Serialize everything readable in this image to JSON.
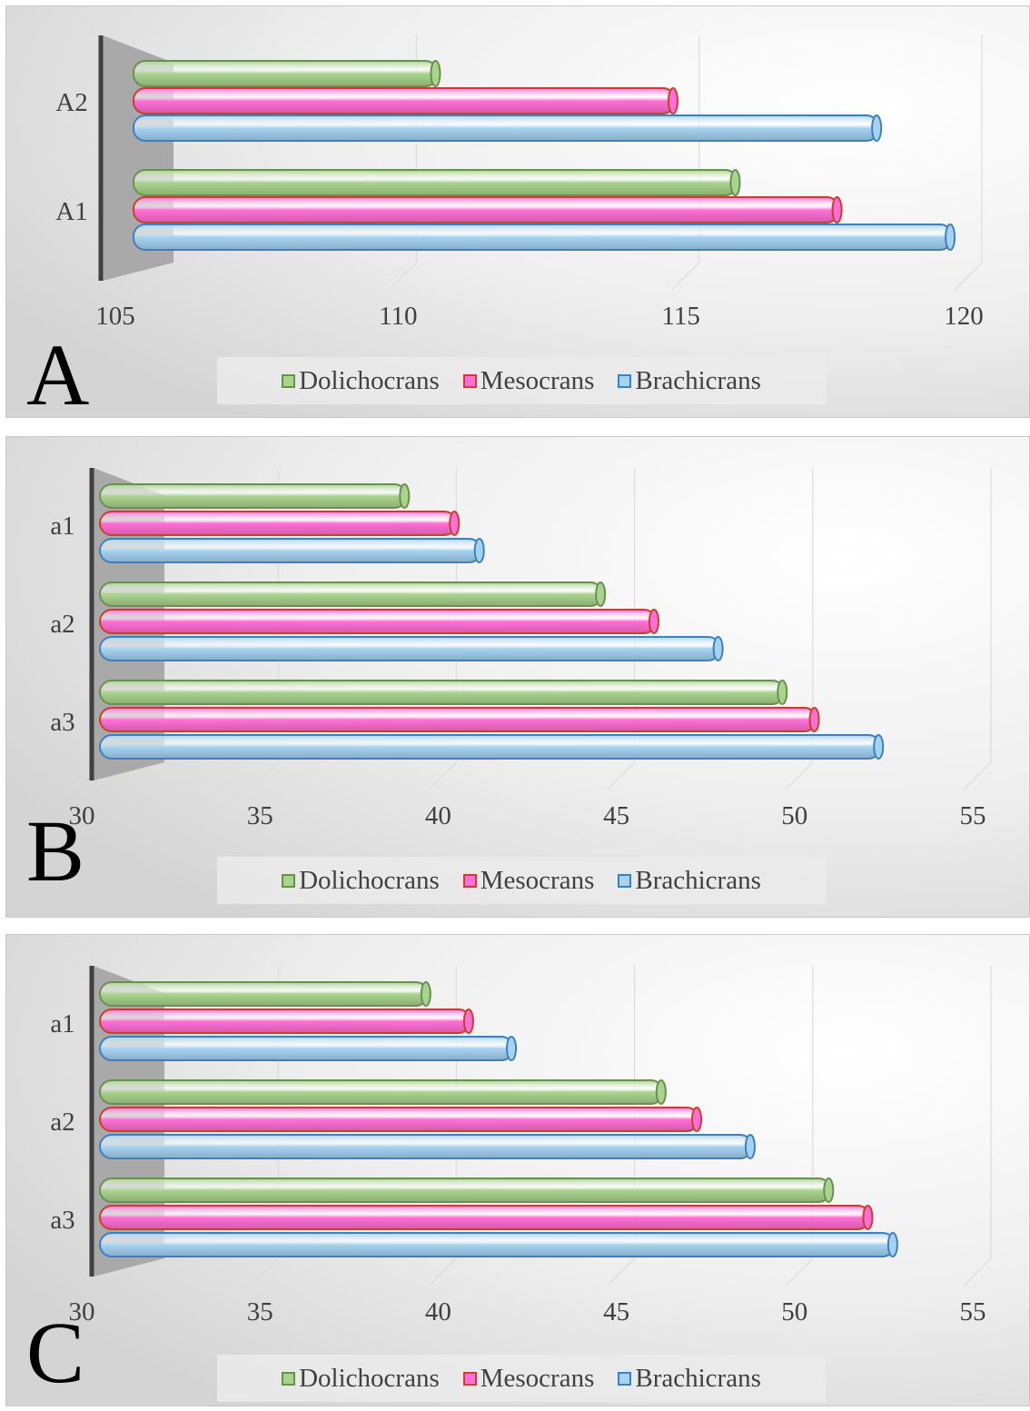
{
  "series_styles": {
    "Dolichocrans": {
      "fill": "#a9d48e",
      "stroke": "#6a8f50"
    },
    "Mesocrans": {
      "fill": "#ff6fd5",
      "stroke": "#c8402a"
    },
    "Brachicrans": {
      "fill": "#a6d3f2",
      "stroke": "#3f7fbf"
    }
  },
  "chart_data": [
    {
      "panel_label": "A",
      "type": "bar",
      "orientation": "horizontal",
      "categories": [
        "A2",
        "A1"
      ],
      "series": [
        {
          "name": "Dolichocrans",
          "values": [
            110.5,
            115.8
          ]
        },
        {
          "name": "Mesocrans",
          "values": [
            114.7,
            117.6
          ]
        },
        {
          "name": "Brachicrans",
          "values": [
            118.3,
            119.6
          ]
        }
      ],
      "xlim": [
        105,
        120
      ],
      "xticks": [
        "105",
        "110",
        "115",
        "120"
      ],
      "legend": [
        "Dolichocrans",
        "Mesocrans",
        "Brachicrans"
      ],
      "legend_position": "bottom",
      "grid": true
    },
    {
      "panel_label": "B",
      "type": "bar",
      "orientation": "horizontal",
      "categories": [
        "a1",
        "a2",
        "a3"
      ],
      "series": [
        {
          "name": "Dolichocrans",
          "values": [
            38.8,
            44.3,
            49.4
          ]
        },
        {
          "name": "Mesocrans",
          "values": [
            40.2,
            45.8,
            50.3
          ]
        },
        {
          "name": "Brachicrans",
          "values": [
            40.9,
            47.6,
            52.1
          ]
        }
      ],
      "xlim": [
        30,
        55
      ],
      "xticks": [
        "30",
        "35",
        "40",
        "45",
        "50",
        "55"
      ],
      "legend": [
        "Dolichocrans",
        "Mesocrans",
        "Brachicrans"
      ],
      "legend_position": "bottom",
      "grid": true
    },
    {
      "panel_label": "C",
      "type": "bar",
      "orientation": "horizontal",
      "categories": [
        "a1",
        "a2",
        "a3"
      ],
      "series": [
        {
          "name": "Dolichocrans",
          "values": [
            39.4,
            46.0,
            50.7
          ]
        },
        {
          "name": "Mesocrans",
          "values": [
            40.6,
            47.0,
            51.8
          ]
        },
        {
          "name": "Brachicrans",
          "values": [
            41.8,
            48.5,
            52.5
          ]
        }
      ],
      "xlim": [
        30,
        55
      ],
      "xticks": [
        "30",
        "35",
        "40",
        "45",
        "50",
        "55"
      ],
      "legend": [
        "Dolichocrans",
        "Mesocrans",
        "Brachicrans"
      ],
      "legend_position": "bottom",
      "grid": true
    }
  ]
}
